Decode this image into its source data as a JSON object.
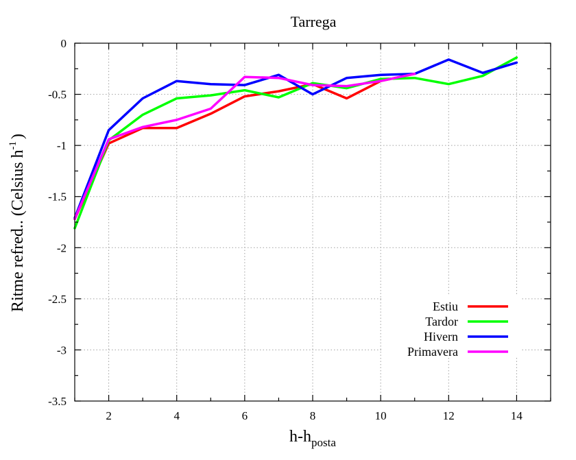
{
  "chart_data": {
    "type": "line",
    "title": "Tarrega",
    "xlabel_main": "h-h",
    "xlabel_sub": "posta",
    "ylabel_main": "Ritme refred.. (Celsius h",
    "ylabel_sup": "-1",
    "ylabel_close": ")",
    "xlim": [
      1,
      15
    ],
    "ylim": [
      -3.5,
      0
    ],
    "xticks": [
      2,
      4,
      6,
      8,
      10,
      12,
      14
    ],
    "yticks": [
      0,
      -0.5,
      -1,
      -1.5,
      -2,
      -2.5,
      -3,
      -3.5
    ],
    "xtick_labels": [
      "2",
      "4",
      "6",
      "8",
      "10",
      "12",
      "14"
    ],
    "ytick_labels": [
      "0",
      "-0.5",
      "-1",
      "-1.5",
      "-2",
      "-2.5",
      "-3",
      "-3.5"
    ],
    "grid": true,
    "legend_position": "bottom-right",
    "series": [
      {
        "name": "Estiu",
        "color": "#ff0000",
        "x": [
          1,
          2,
          3,
          4,
          5,
          6,
          7,
          8,
          9,
          10,
          11
        ],
        "y": [
          -1.72,
          -0.98,
          -0.83,
          -0.83,
          -0.69,
          -0.52,
          -0.47,
          -0.4,
          -0.54,
          -0.37,
          -0.3
        ]
      },
      {
        "name": "Tardor",
        "color": "#00ff00",
        "x": [
          1,
          2,
          3,
          4,
          5,
          6,
          7,
          8,
          9,
          10,
          11,
          12,
          13,
          14
        ],
        "y": [
          -1.81,
          -0.95,
          -0.7,
          -0.54,
          -0.51,
          -0.46,
          -0.53,
          -0.39,
          -0.44,
          -0.35,
          -0.34,
          -0.4,
          -0.32,
          -0.14
        ]
      },
      {
        "name": "Hivern",
        "color": "#0000ff",
        "x": [
          1,
          2,
          3,
          4,
          5,
          6,
          7,
          8,
          9,
          10,
          11,
          12,
          13,
          14
        ],
        "y": [
          -1.71,
          -0.85,
          -0.54,
          -0.37,
          -0.4,
          -0.41,
          -0.31,
          -0.5,
          -0.34,
          -0.31,
          -0.3,
          -0.16,
          -0.29,
          -0.19
        ]
      },
      {
        "name": "Primavera",
        "color": "#ff00ff",
        "x": [
          1,
          2,
          3,
          4,
          5,
          6,
          7,
          8,
          9,
          10,
          11
        ],
        "y": [
          -1.72,
          -0.94,
          -0.82,
          -0.75,
          -0.64,
          -0.33,
          -0.34,
          -0.41,
          -0.42,
          -0.37,
          -0.3
        ]
      }
    ]
  }
}
